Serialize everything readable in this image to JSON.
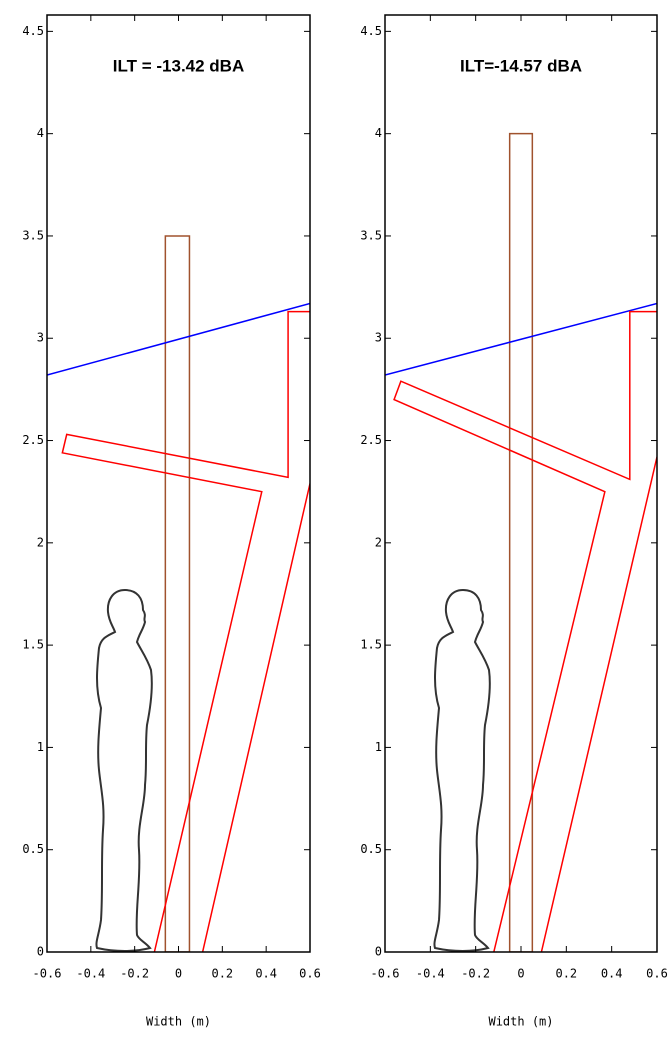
{
  "chart_data": [
    {
      "type": "line",
      "title": "ILT = -13.42 dBA",
      "x_label": "Width (m)",
      "xlim": [
        -0.6,
        0.6
      ],
      "ylim": [
        0,
        4.58
      ],
      "xticks": [
        -0.6,
        -0.4,
        -0.2,
        0,
        0.2,
        0.4,
        0.6
      ],
      "yticks": [
        0,
        0.5,
        1,
        1.5,
        2,
        2.5,
        3,
        3.5,
        4,
        4.5
      ],
      "series": [
        {
          "color": "#a0522d",
          "x": [
            -0.06,
            -0.06,
            0.05,
            0.05,
            -0.06
          ],
          "values": [
            0,
            3.5,
            3.5,
            0,
            0
          ]
        },
        {
          "color": "#0000ff",
          "x": [
            -0.6,
            0.6
          ],
          "values": [
            2.82,
            3.17
          ]
        },
        {
          "color": "#ff0000",
          "x": [
            0.6,
            0.5,
            0.5,
            -0.51,
            -0.53,
            0.38,
            -0.11,
            null,
            0.11,
            0.6
          ],
          "values": [
            3.13,
            3.13,
            2.32,
            2.53,
            2.44,
            2.25,
            0,
            null,
            0,
            2.29
          ]
        }
      ]
    },
    {
      "type": "line",
      "title": "ILT=-14.57 dBA",
      "x_label": "Width (m)",
      "xlim": [
        -0.6,
        0.6
      ],
      "ylim": [
        0,
        4.58
      ],
      "xticks": [
        -0.6,
        -0.4,
        -0.2,
        0,
        0.2,
        0.4,
        0.6
      ],
      "yticks": [
        0,
        0.5,
        1,
        1.5,
        2,
        2.5,
        3,
        3.5,
        4,
        4.5
      ],
      "series": [
        {
          "color": "#a0522d",
          "x": [
            -0.05,
            -0.05,
            0.05,
            0.05,
            -0.05
          ],
          "values": [
            0,
            4,
            4,
            0,
            0
          ]
        },
        {
          "color": "#0000ff",
          "x": [
            -0.6,
            0.6
          ],
          "values": [
            2.82,
            3.17
          ]
        },
        {
          "color": "#ff0000",
          "x": [
            0.6,
            0.48,
            0.48,
            -0.53,
            -0.56,
            0.37,
            -0.12,
            null,
            0.09,
            0.6
          ],
          "values": [
            3.13,
            3.13,
            2.31,
            2.79,
            2.7,
            2.25,
            0,
            null,
            0,
            2.42
          ]
        }
      ]
    }
  ]
}
